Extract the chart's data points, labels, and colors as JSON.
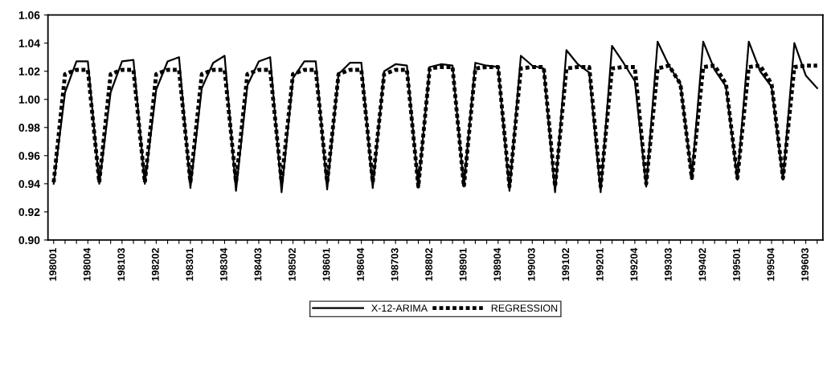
{
  "chart_data": {
    "type": "line",
    "categories": [
      "198001",
      null,
      null,
      "198004",
      null,
      null,
      "198103",
      null,
      null,
      "198202",
      null,
      null,
      "198301",
      null,
      null,
      "198304",
      null,
      null,
      "198403",
      null,
      null,
      "198502",
      null,
      null,
      "198601",
      null,
      null,
      "198604",
      null,
      null,
      "198703",
      null,
      null,
      "198802",
      null,
      null,
      "198901",
      null,
      null,
      "198904",
      null,
      null,
      "199003",
      null,
      null,
      "199102",
      null,
      null,
      "199201",
      null,
      null,
      "199204",
      null,
      null,
      "199303",
      null,
      null,
      "199402",
      null,
      null,
      "199501",
      null,
      null,
      "199504",
      null,
      null,
      "199603",
      null
    ],
    "series": [
      {
        "name": "X-12-ARIMA",
        "color": "#000000",
        "line_style": "solid",
        "values": [
          0.94,
          1.005,
          1.027,
          1.027,
          0.94,
          1.005,
          1.027,
          1.028,
          0.94,
          1.007,
          1.027,
          1.03,
          0.937,
          1.008,
          1.026,
          1.031,
          0.935,
          1.01,
          1.027,
          1.03,
          0.934,
          1.015,
          1.027,
          1.027,
          0.936,
          1.018,
          1.026,
          1.026,
          0.937,
          1.02,
          1.025,
          1.024,
          0.938,
          1.023,
          1.025,
          1.024,
          0.938,
          1.026,
          1.024,
          1.023,
          0.935,
          1.031,
          1.024,
          1.022,
          0.934,
          1.035,
          1.025,
          1.019,
          0.934,
          1.038,
          1.026,
          1.013,
          0.938,
          1.041,
          1.024,
          1.011,
          0.945,
          1.041,
          1.021,
          1.009,
          0.943,
          1.041,
          1.02,
          1.009,
          0.943,
          1.04,
          1.017,
          1.008
        ]
      },
      {
        "name": "REGRESSION",
        "color": "#000000",
        "line_style": "dashed",
        "values": [
          0.941,
          1.018,
          1.021,
          1.021,
          0.941,
          1.018,
          1.021,
          1.021,
          0.941,
          1.018,
          1.021,
          1.021,
          0.941,
          1.018,
          1.021,
          1.021,
          0.941,
          1.018,
          1.021,
          1.021,
          0.941,
          1.018,
          1.021,
          1.021,
          0.941,
          1.018,
          1.021,
          1.021,
          0.941,
          1.018,
          1.021,
          1.021,
          0.938,
          1.022,
          1.023,
          1.023,
          0.938,
          1.022,
          1.023,
          1.023,
          0.938,
          1.022,
          1.023,
          1.023,
          0.938,
          1.022,
          1.023,
          1.023,
          0.938,
          1.022,
          1.023,
          1.023,
          0.94,
          1.022,
          1.024,
          1.011,
          0.944,
          1.023,
          1.024,
          1.011,
          0.944,
          1.023,
          1.024,
          1.011,
          0.944,
          1.023,
          1.024,
          1.024
        ]
      }
    ],
    "ylim": [
      0.9,
      1.06
    ],
    "yticks": [
      {
        "value": 0.9,
        "label": "0.90"
      },
      0.92,
      0.94,
      0.96,
      0.98,
      {
        "value": 1.0,
        "label": "1.00"
      },
      1.02,
      1.04,
      1.06
    ],
    "grid": false,
    "legend": "bottom",
    "marker": "none"
  }
}
